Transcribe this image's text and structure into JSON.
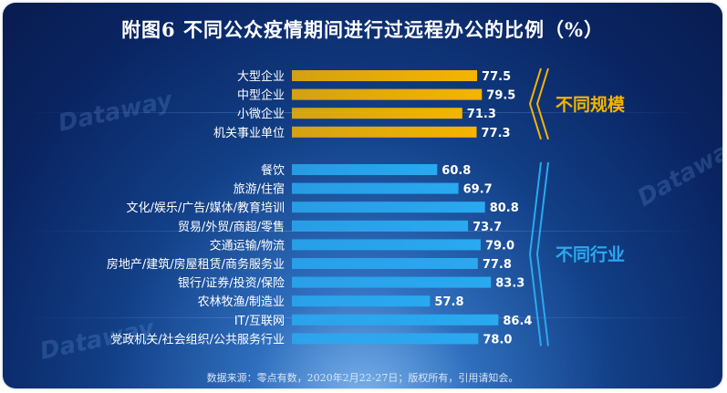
{
  "page": {
    "title": "附图6 不同公众疫情期间进行过远程办公的比例（%）"
  },
  "chart_data": {
    "type": "bar",
    "orientation": "horizontal",
    "title": "附图6 不同公众疫情期间进行过远程办公的比例（%）",
    "source": "数据来源：零点有数，2020年2月22-27日；版权所有，引用请知会。",
    "value_precision": 1,
    "groups": [
      {
        "name": "不同规模",
        "color": "#f5b400",
        "categories": [
          "大型企业",
          "中型企业",
          "小微企业",
          "机关事业单位"
        ],
        "values": [
          77.5,
          79.5,
          71.3,
          77.3
        ]
      },
      {
        "name": "不同行业",
        "color": "#29a9f0",
        "categories": [
          "餐饮",
          "旅游/住宿",
          "文化/娱乐/广告/媒体/教育培训",
          "贸易/外贸/商超/零售",
          "交通运输/物流",
          "房地产/建筑/房屋租赁/商务服务业",
          "银行/证券/投资/保险",
          "农林牧渔/制造业",
          "IT/互联网",
          "党政机关/社会组织/公共服务行业"
        ],
        "values": [
          60.8,
          69.7,
          80.8,
          73.7,
          79.0,
          77.8,
          83.3,
          57.8,
          86.4,
          78.0
        ]
      }
    ],
    "xlim": [
      0,
      100
    ],
    "grid": false,
    "legend": "none"
  }
}
